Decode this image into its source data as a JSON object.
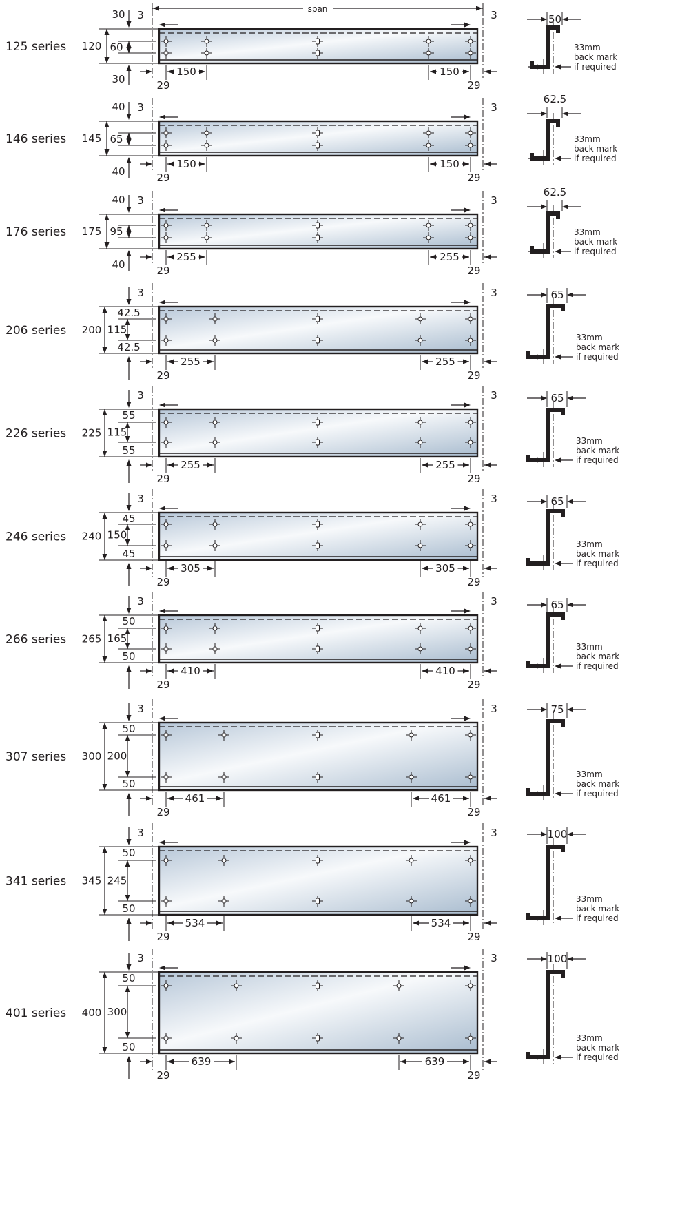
{
  "header": {
    "span_label": "span"
  },
  "common": {
    "end_gap": "3",
    "edge_offset": "29",
    "back_mark": [
      "33mm",
      "back mark",
      "if required"
    ]
  },
  "colors": {
    "beam_steel": "#c9d6e3",
    "beam_highlight": "#f7f9fb",
    "ink": "#231f20"
  },
  "series": [
    {
      "name": "125 series",
      "depth": "120",
      "top_margin": "30",
      "bottom_margin": "30",
      "hole_spacing": "60",
      "end_pitch": "150",
      "flange": "50"
    },
    {
      "name": "146 series",
      "depth": "145",
      "top_margin": "40",
      "bottom_margin": "40",
      "hole_spacing": "65",
      "end_pitch": "150",
      "flange": "62.5"
    },
    {
      "name": "176 series",
      "depth": "175",
      "top_margin": "40",
      "bottom_margin": "40",
      "hole_spacing": "95",
      "end_pitch": "255",
      "flange": "62.5"
    },
    {
      "name": "206 series",
      "depth": "200",
      "top_margin": "42.5",
      "bottom_margin": "42.5",
      "hole_spacing": "115",
      "end_pitch": "255",
      "flange": "65"
    },
    {
      "name": "226 series",
      "depth": "225",
      "top_margin": "55",
      "bottom_margin": "55",
      "hole_spacing": "115",
      "end_pitch": "255",
      "flange": "65"
    },
    {
      "name": "246 series",
      "depth": "240",
      "top_margin": "45",
      "bottom_margin": "45",
      "hole_spacing": "150",
      "end_pitch": "305",
      "flange": "65"
    },
    {
      "name": "266 series",
      "depth": "265",
      "top_margin": "50",
      "bottom_margin": "50",
      "hole_spacing": "165",
      "end_pitch": "410",
      "flange": "65"
    },
    {
      "name": "307 series",
      "depth": "300",
      "top_margin": "50",
      "bottom_margin": "50",
      "hole_spacing": "200",
      "end_pitch": "461",
      "flange": "75"
    },
    {
      "name": "341 series",
      "depth": "345",
      "top_margin": "50",
      "bottom_margin": "50",
      "hole_spacing": "245",
      "end_pitch": "534",
      "flange": "100"
    },
    {
      "name": "401 series",
      "depth": "400",
      "top_margin": "50",
      "bottom_margin": "50",
      "hole_spacing": "300",
      "end_pitch": "639",
      "flange": "100"
    }
  ]
}
